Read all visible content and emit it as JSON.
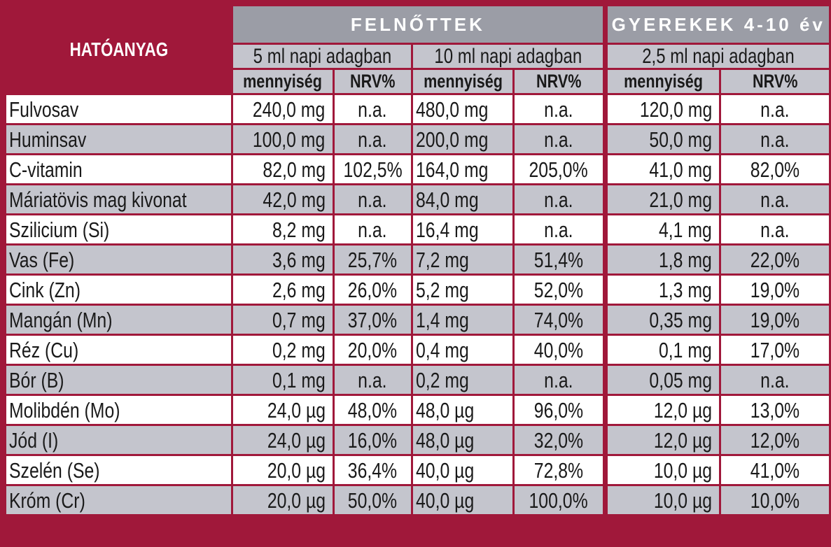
{
  "header": {
    "ingredient_label": "HATÓANYAG",
    "adults_label": "FELNŐTTEK",
    "children_label": "GYEREKEK 4-10 év",
    "dose_5ml": "5 ml napi adagban",
    "dose_10ml": "10 ml napi adagban",
    "dose_2_5ml": "2,5 ml napi adagban",
    "amount_label": "mennyiség",
    "nrv_label": "NRV%"
  },
  "colors": {
    "frame": "#a0183a",
    "header_gray": "#9b9da6",
    "row_gray": "#c4c5cd",
    "row_white": "#ffffff"
  },
  "rows": [
    {
      "name": "Fulvosav",
      "a5": "240,0 mg",
      "n5": "n.a.",
      "a10": "480,0 mg",
      "n10": "n.a.",
      "ak": "120,0 mg",
      "nk": "n.a."
    },
    {
      "name": "Huminsav",
      "a5": "100,0 mg",
      "n5": "n.a.",
      "a10": "200,0 mg",
      "n10": "n.a.",
      "ak": "50,0 mg",
      "nk": "n.a."
    },
    {
      "name": "C-vitamin",
      "a5": "82,0 mg",
      "n5": "102,5%",
      "a10": "164,0 mg",
      "n10": "205,0%",
      "ak": "41,0 mg",
      "nk": "82,0%"
    },
    {
      "name": "Máriatövis mag kivonat",
      "a5": "42,0 mg",
      "n5": "n.a.",
      "a10": "84,0 mg",
      "n10": "n.a.",
      "ak": "21,0 mg",
      "nk": "n.a."
    },
    {
      "name": "Szilicium (Si)",
      "a5": "8,2 mg",
      "n5": "n.a.",
      "a10": "16,4 mg",
      "n10": "n.a.",
      "ak": "4,1 mg",
      "nk": "n.a."
    },
    {
      "name": "Vas (Fe)",
      "a5": "3,6 mg",
      "n5": "25,7%",
      "a10": "7,2 mg",
      "n10": "51,4%",
      "ak": "1,8 mg",
      "nk": "22,0%"
    },
    {
      "name": "Cink (Zn)",
      "a5": "2,6 mg",
      "n5": "26,0%",
      "a10": "5,2 mg",
      "n10": "52,0%",
      "ak": "1,3 mg",
      "nk": "19,0%"
    },
    {
      "name": "Mangán (Mn)",
      "a5": "0,7 mg",
      "n5": "37,0%",
      "a10": "1,4 mg",
      "n10": "74,0%",
      "ak": "0,35 mg",
      "nk": "19,0%"
    },
    {
      "name": "Réz (Cu)",
      "a5": "0,2 mg",
      "n5": "20,0%",
      "a10": "0,4 mg",
      "n10": "40,0%",
      "ak": "0,1 mg",
      "nk": "17,0%"
    },
    {
      "name": "Bór (B)",
      "a5": "0,1 mg",
      "n5": "n.a.",
      "a10": "0,2 mg",
      "n10": "n.a.",
      "ak": "0,05 mg",
      "nk": "n.a."
    },
    {
      "name": "Molibdén (Mo)",
      "a5": "24,0 µg",
      "n5": "48,0%",
      "a10": "48,0 µg",
      "n10": "96,0%",
      "ak": "12,0 µg",
      "nk": "13,0%"
    },
    {
      "name": "Jód (I)",
      "a5": "24,0 µg",
      "n5": "16,0%",
      "a10": "48,0 µg",
      "n10": "32,0%",
      "ak": "12,0 µg",
      "nk": "12,0%"
    },
    {
      "name": "Szelén (Se)",
      "a5": "20,0 µg",
      "n5": "36,4%",
      "a10": "40,0 µg",
      "n10": "72,8%",
      "ak": "10,0 µg",
      "nk": "41,0%"
    },
    {
      "name": "Króm (Cr)",
      "a5": "20,0 µg",
      "n5": "50,0%",
      "a10": "40,0 µg",
      "n10": "100,0%",
      "ak": "10,0 µg",
      "nk": "10,0%"
    }
  ]
}
